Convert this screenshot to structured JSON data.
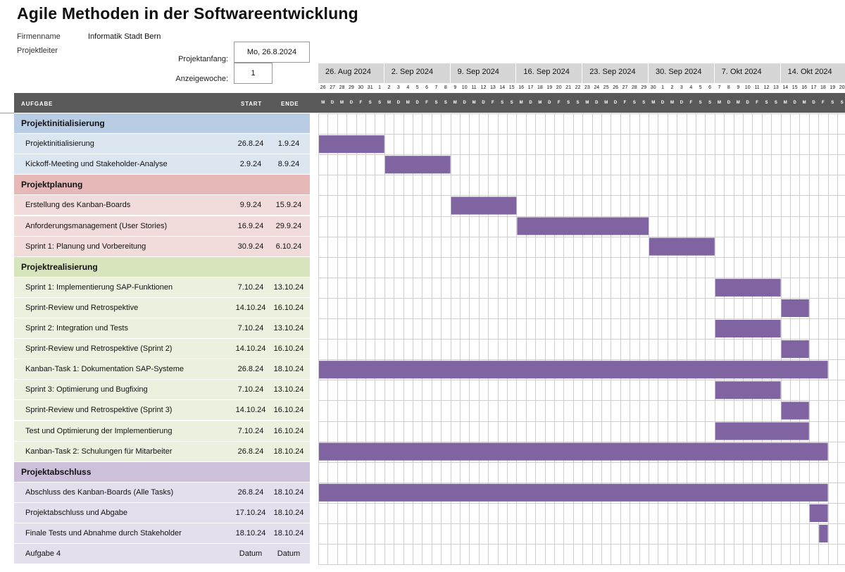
{
  "title": "Agile Methoden in der Softwareentwicklung",
  "company_label": "Firmenname",
  "company_value": "Informatik Stadt Bern",
  "manager_label": "Projektleiter",
  "project_start_label": "Projektanfang:",
  "project_start_value": "Mo, 26.8.2024",
  "display_week_label": "Anzeigewoche:",
  "display_week_value": "1",
  "columns": {
    "task": "AUFGABE",
    "start": "START",
    "end": "ENDE"
  },
  "colors": {
    "bar": "#8064a2",
    "phase1_header": "#b8cce4",
    "phase1_row": "#dce6f1",
    "phase2_header": "#e6b8b7",
    "phase2_row": "#f2dcdb",
    "phase3_header": "#d8e4bc",
    "phase3_row": "#ebf1de",
    "phase4_header": "#ccc0da",
    "phase4_row": "#e4dfec"
  },
  "weeks": [
    "26. Aug 2024",
    "2. Sep 2024",
    "9. Sep 2024",
    "16. Sep 2024",
    "23. Sep 2024",
    "30. Sep 2024",
    "7. Okt 2024",
    "14. Okt 2024"
  ],
  "days": [
    "26",
    "27",
    "28",
    "29",
    "30",
    "31",
    "1",
    "2",
    "3",
    "4",
    "5",
    "6",
    "7",
    "8",
    "9",
    "10",
    "11",
    "12",
    "13",
    "14",
    "15",
    "16",
    "17",
    "18",
    "19",
    "20",
    "21",
    "22",
    "23",
    "24",
    "25",
    "26",
    "27",
    "28",
    "29",
    "30",
    "1",
    "2",
    "3",
    "4",
    "5",
    "6",
    "7",
    "8",
    "9",
    "10",
    "11",
    "12",
    "13",
    "14",
    "15",
    "16",
    "17",
    "18",
    "19",
    "20"
  ],
  "weekdays": [
    "M",
    "D",
    "M",
    "D",
    "F",
    "S",
    "S"
  ],
  "rows": [
    {
      "type": "phase",
      "phase": 1,
      "task": "Projektinitialisierung"
    },
    {
      "type": "task",
      "phase": 1,
      "task": "Projektinitialisierung",
      "start": "26.8.24",
      "end": "1.9.24",
      "bar_start": 0,
      "bar_days": 7
    },
    {
      "type": "task",
      "phase": 1,
      "task": "Kickoff-Meeting und Stakeholder-Analyse",
      "start": "2.9.24",
      "end": "8.9.24",
      "bar_start": 7,
      "bar_days": 7
    },
    {
      "type": "phase",
      "phase": 2,
      "task": "Projektplanung"
    },
    {
      "type": "task",
      "phase": 2,
      "task": "Erstellung des Kanban-Boards",
      "start": "9.9.24",
      "end": "15.9.24",
      "bar_start": 14,
      "bar_days": 7
    },
    {
      "type": "task",
      "phase": 2,
      "task": "Anforderungsmanagement (User Stories)",
      "start": "16.9.24",
      "end": "29.9.24",
      "bar_start": 21,
      "bar_days": 14
    },
    {
      "type": "task",
      "phase": 2,
      "task": "Sprint 1: Planung und Vorbereitung",
      "start": "30.9.24",
      "end": "6.10.24",
      "bar_start": 35,
      "bar_days": 7
    },
    {
      "type": "phase",
      "phase": 3,
      "task": "Projektrealisierung"
    },
    {
      "type": "task",
      "phase": 3,
      "task": "Sprint 1: Implementierung SAP-Funktionen",
      "start": "7.10.24",
      "end": "13.10.24",
      "bar_start": 42,
      "bar_days": 7
    },
    {
      "type": "task",
      "phase": 3,
      "task": "Sprint-Review und Retrospektive",
      "start": "14.10.24",
      "end": "16.10.24",
      "bar_start": 49,
      "bar_days": 3
    },
    {
      "type": "task",
      "phase": 3,
      "task": "Sprint 2: Integration und Tests",
      "start": "7.10.24",
      "end": "13.10.24",
      "bar_start": 42,
      "bar_days": 7
    },
    {
      "type": "task",
      "phase": 3,
      "task": "Sprint-Review und Retrospektive (Sprint 2)",
      "start": "14.10.24",
      "end": "16.10.24",
      "bar_start": 49,
      "bar_days": 3
    },
    {
      "type": "task",
      "phase": 3,
      "task": "Kanban-Task 1: Dokumentation SAP-Systeme",
      "start": "26.8.24",
      "end": "18.10.24",
      "bar_start": 0,
      "bar_days": 54
    },
    {
      "type": "task",
      "phase": 3,
      "task": "Sprint 3: Optimierung und Bugfixing",
      "start": "7.10.24",
      "end": "13.10.24",
      "bar_start": 42,
      "bar_days": 7
    },
    {
      "type": "task",
      "phase": 3,
      "task": "Sprint-Review und Retrospektive (Sprint 3)",
      "start": "14.10.24",
      "end": "16.10.24",
      "bar_start": 49,
      "bar_days": 3
    },
    {
      "type": "task",
      "phase": 3,
      "task": "Test und Optimierung der Implementierung",
      "start": "7.10.24",
      "end": "16.10.24",
      "bar_start": 42,
      "bar_days": 10
    },
    {
      "type": "task",
      "phase": 3,
      "task": "Kanban-Task 2: Schulungen für Mitarbeiter",
      "start": "26.8.24",
      "end": "18.10.24",
      "bar_start": 0,
      "bar_days": 54
    },
    {
      "type": "phase",
      "phase": 4,
      "task": "Projektabschluss"
    },
    {
      "type": "task",
      "phase": 4,
      "task": "Abschluss des Kanban-Boards (Alle Tasks)",
      "start": "26.8.24",
      "end": "18.10.24",
      "bar_start": 0,
      "bar_days": 54
    },
    {
      "type": "task",
      "phase": 4,
      "task": "Projektabschluss und Abgabe",
      "start": "17.10.24",
      "end": "18.10.24",
      "bar_start": 52,
      "bar_days": 2
    },
    {
      "type": "task",
      "phase": 4,
      "task": "Finale Tests und Abnahme durch Stakeholder",
      "start": "18.10.24",
      "end": "18.10.24",
      "bar_start": 53,
      "bar_days": 1
    },
    {
      "type": "task",
      "phase": 4,
      "task": "Aufgabe 4",
      "start": "Datum",
      "end": "Datum",
      "bar_start": null,
      "bar_days": 0
    }
  ]
}
